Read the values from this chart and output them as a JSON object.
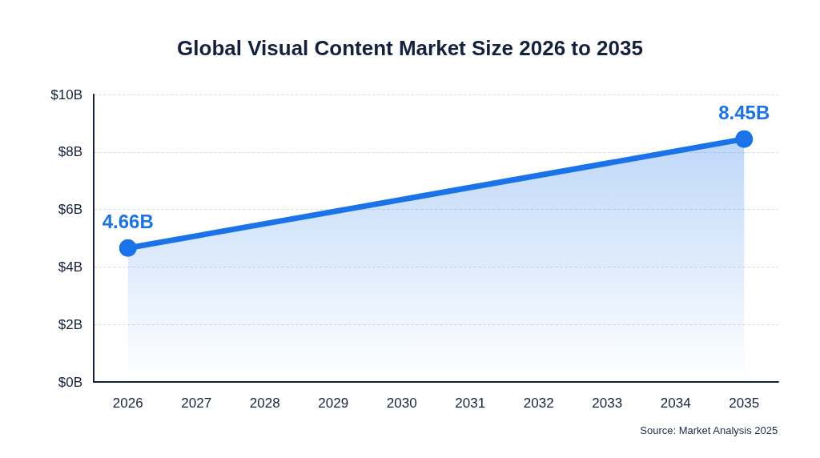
{
  "chart_data": {
    "type": "area",
    "title": "Global Visual Content Market Size 2026 to 2035",
    "x": [
      2026,
      2035
    ],
    "values": [
      4.66,
      8.45
    ],
    "value_labels": [
      "4.66B",
      "8.45B"
    ],
    "color": "#1a73e8",
    "xlim": [
      2025.5,
      2035.5
    ],
    "xticks": [
      2026,
      2027,
      2028,
      2029,
      2030,
      2031,
      2032,
      2033,
      2034,
      2035
    ],
    "ylim": [
      0,
      10
    ],
    "yticks": [
      {
        "value": 0,
        "label": "$0B"
      },
      {
        "value": 2,
        "label": "$2B"
      },
      {
        "value": 4,
        "label": "$4B"
      },
      {
        "value": 6,
        "label": "$6B"
      },
      {
        "value": 8,
        "label": "$8B"
      },
      {
        "value": 10,
        "label": "$10B"
      }
    ],
    "grid": "y",
    "marker": "circle",
    "annotations": [
      "Source: Market Analysis 2025"
    ]
  }
}
